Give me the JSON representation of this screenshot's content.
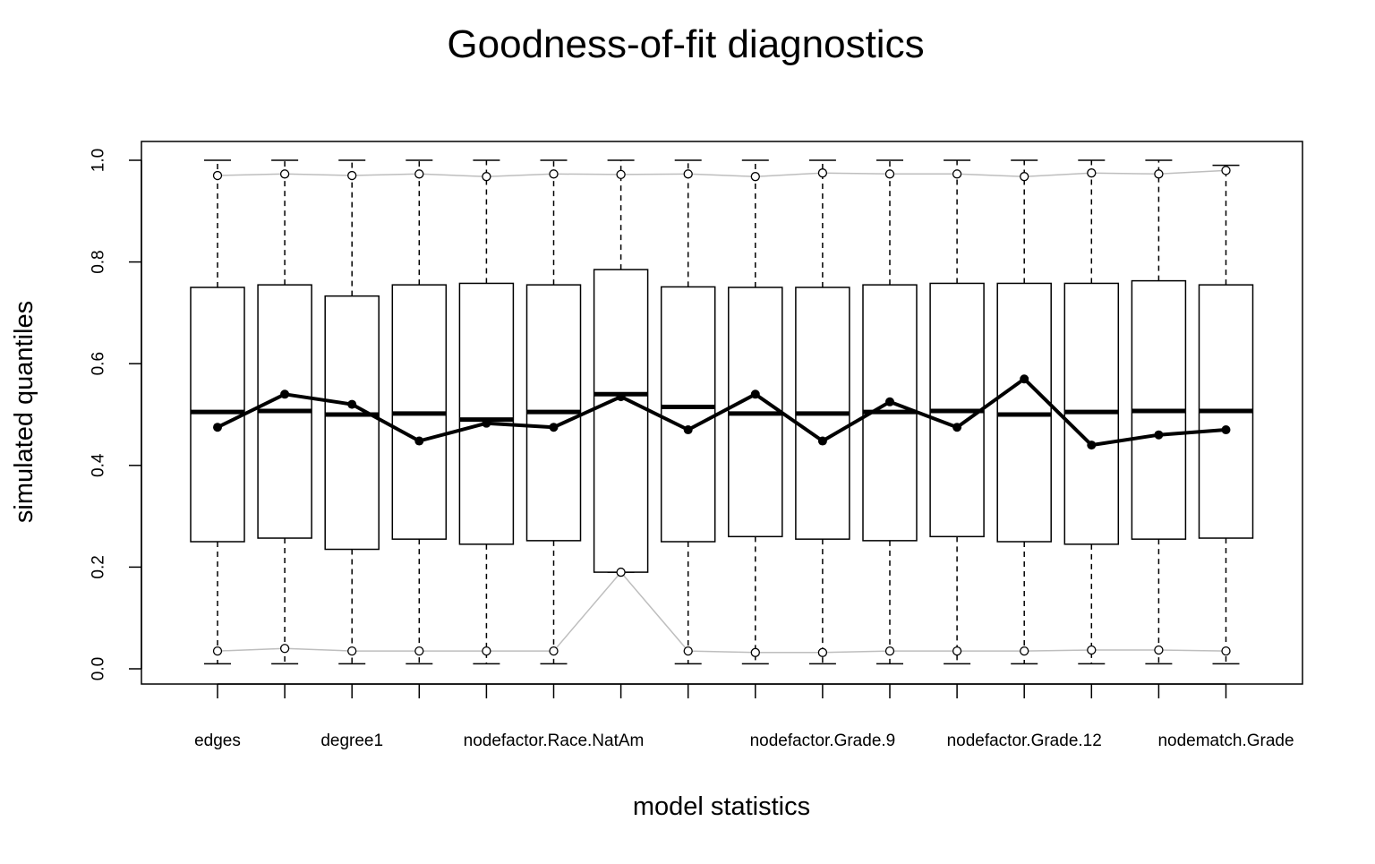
{
  "chart_data": {
    "type": "box",
    "title": "Goodness-of-fit diagnostics",
    "xlabel": "model statistics",
    "ylabel": "simulated quantiles",
    "ylim": [
      0,
      1
    ],
    "yticks": [
      "0.0",
      "0.2",
      "0.4",
      "0.6",
      "0.8",
      "1.0"
    ],
    "ytick_values": [
      0,
      0.2,
      0.4,
      0.6,
      0.8,
      1.0
    ],
    "grid": false,
    "categories": [
      "edges",
      "",
      "degree1",
      "",
      "",
      "nodefactor.Race.NatAm",
      "",
      "",
      "",
      "nodefactor.Grade.9",
      "",
      "",
      "nodefactor.Grade.12",
      "",
      "",
      "nodematch.Grade"
    ],
    "boxes": [
      {
        "whisker_low": 0.01,
        "q1": 0.25,
        "median": 0.505,
        "q3": 0.75,
        "whisker_high": 1.0
      },
      {
        "whisker_low": 0.01,
        "q1": 0.257,
        "median": 0.507,
        "q3": 0.755,
        "whisker_high": 1.0
      },
      {
        "whisker_low": 0.01,
        "q1": 0.235,
        "median": 0.5,
        "q3": 0.733,
        "whisker_high": 1.0
      },
      {
        "whisker_low": 0.01,
        "q1": 0.255,
        "median": 0.502,
        "q3": 0.755,
        "whisker_high": 1.0
      },
      {
        "whisker_low": 0.01,
        "q1": 0.245,
        "median": 0.49,
        "q3": 0.758,
        "whisker_high": 1.0
      },
      {
        "whisker_low": 0.01,
        "q1": 0.252,
        "median": 0.505,
        "q3": 0.755,
        "whisker_high": 1.0
      },
      {
        "whisker_low": 0.19,
        "q1": 0.19,
        "median": 0.54,
        "q3": 0.785,
        "whisker_high": 1.0
      },
      {
        "whisker_low": 0.01,
        "q1": 0.25,
        "median": 0.515,
        "q3": 0.751,
        "whisker_high": 1.0
      },
      {
        "whisker_low": 0.01,
        "q1": 0.26,
        "median": 0.502,
        "q3": 0.75,
        "whisker_high": 1.0
      },
      {
        "whisker_low": 0.01,
        "q1": 0.255,
        "median": 0.502,
        "q3": 0.75,
        "whisker_high": 1.0
      },
      {
        "whisker_low": 0.01,
        "q1": 0.252,
        "median": 0.505,
        "q3": 0.755,
        "whisker_high": 1.0
      },
      {
        "whisker_low": 0.01,
        "q1": 0.26,
        "median": 0.507,
        "q3": 0.758,
        "whisker_high": 1.0
      },
      {
        "whisker_low": 0.01,
        "q1": 0.25,
        "median": 0.5,
        "q3": 0.758,
        "whisker_high": 1.0
      },
      {
        "whisker_low": 0.01,
        "q1": 0.245,
        "median": 0.505,
        "q3": 0.758,
        "whisker_high": 1.0
      },
      {
        "whisker_low": 0.01,
        "q1": 0.255,
        "median": 0.507,
        "q3": 0.763,
        "whisker_high": 1.0
      },
      {
        "whisker_low": 0.01,
        "q1": 0.257,
        "median": 0.507,
        "q3": 0.755,
        "whisker_high": 0.99
      }
    ],
    "series": [
      {
        "role": "observed",
        "color": "#000000",
        "values": [
          0.475,
          0.54,
          0.52,
          0.448,
          0.483,
          0.475,
          0.535,
          0.47,
          0.54,
          0.448,
          0.525,
          0.475,
          0.57,
          0.44,
          0.46,
          0.47
        ]
      },
      {
        "role": "upper-envelope",
        "color": "#bebebe",
        "values": [
          0.97,
          0.973,
          0.97,
          0.973,
          0.968,
          0.973,
          0.972,
          0.973,
          0.968,
          0.975,
          0.973,
          0.973,
          0.968,
          0.975,
          0.973,
          0.98
        ]
      },
      {
        "role": "lower-envelope",
        "color": "#bebebe",
        "values": [
          0.035,
          0.04,
          0.035,
          0.035,
          0.035,
          0.035,
          0.19,
          0.035,
          0.032,
          0.032,
          0.035,
          0.035,
          0.035,
          0.037,
          0.037,
          0.035
        ]
      }
    ]
  }
}
